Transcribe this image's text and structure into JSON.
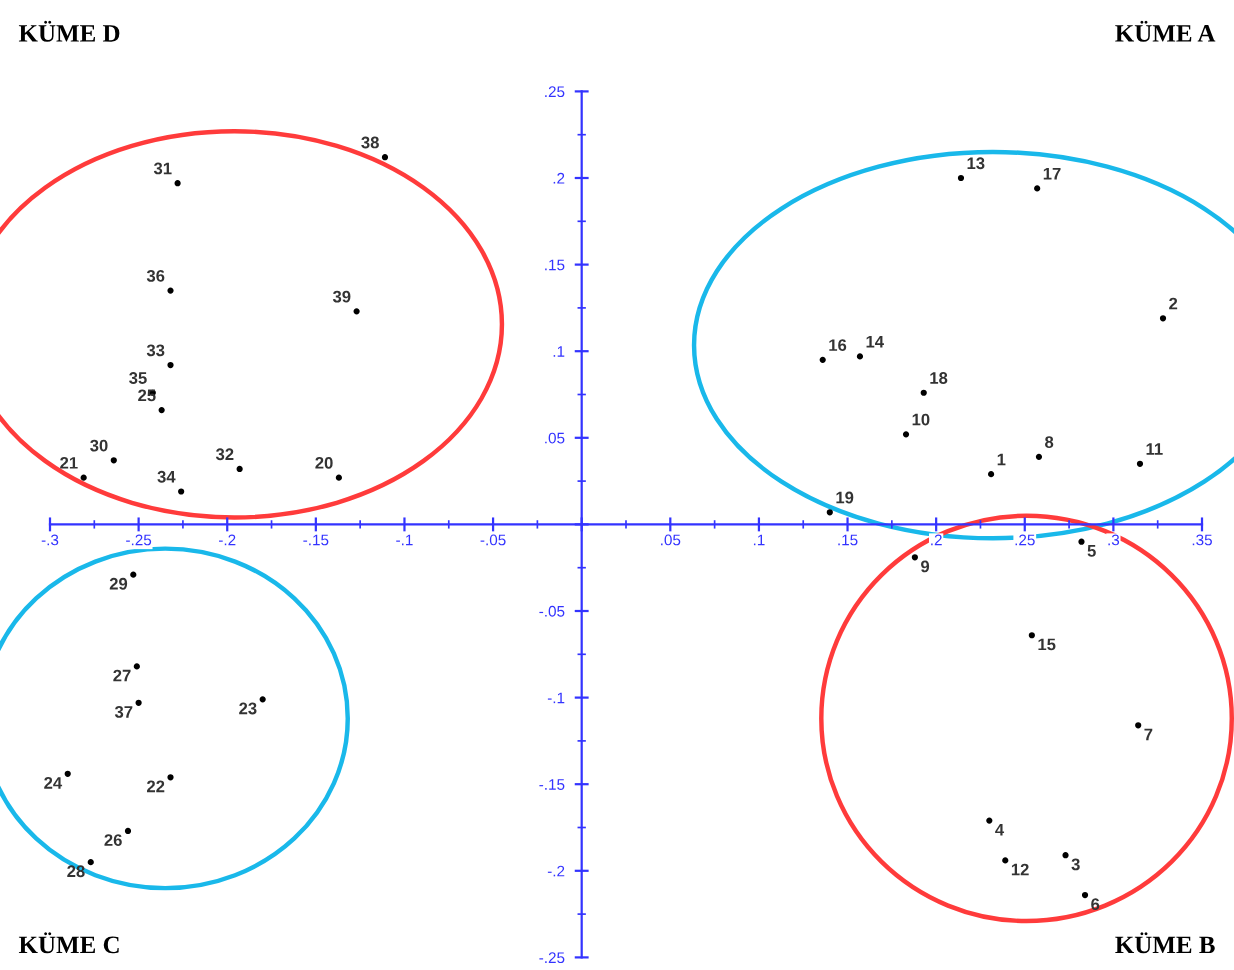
{
  "chart_data": {
    "type": "scatter",
    "marker": "circle",
    "grid": false,
    "xlim": [
      -0.3,
      0.35
    ],
    "ylim": [
      -0.25,
      0.25
    ],
    "xticks": [
      {
        "value": -0.3,
        "label": "-.3"
      },
      {
        "value": -0.25,
        "label": "-.25"
      },
      {
        "value": -0.2,
        "label": "-.2"
      },
      {
        "value": -0.15,
        "label": "-.15"
      },
      {
        "value": -0.1,
        "label": "-.1"
      },
      {
        "value": -0.05,
        "label": "-.05"
      },
      {
        "value": 0,
        "label": null
      },
      {
        "value": 0.05,
        "label": ".05"
      },
      {
        "value": 0.1,
        "label": ".1"
      },
      {
        "value": 0.15,
        "label": ".15"
      },
      {
        "value": 0.2,
        "label": ".2"
      },
      {
        "value": 0.25,
        "label": ".25"
      },
      {
        "value": 0.3,
        "label": ".3"
      },
      {
        "value": 0.35,
        "label": ".35"
      }
    ],
    "yticks": [
      {
        "value": -0.25,
        "label": "-.25"
      },
      {
        "value": -0.2,
        "label": "-.2"
      },
      {
        "value": -0.15,
        "label": "-.15"
      },
      {
        "value": -0.1,
        "label": "-.1"
      },
      {
        "value": -0.05,
        "label": "-.05"
      },
      {
        "value": 0,
        "label": null
      },
      {
        "value": 0.05,
        "label": ".05"
      },
      {
        "value": 0.1,
        "label": ".1"
      },
      {
        "value": 0.15,
        "label": ".15"
      },
      {
        "value": 0.2,
        "label": ".2"
      },
      {
        "value": 0.25,
        "label": ".25"
      }
    ],
    "annotations": [
      "KÜME D",
      "KÜME A",
      "KÜME C",
      "KÜME B",
      {
        "text": "38",
        "x": -0.111,
        "y": 0.212
      },
      {
        "text": "31",
        "x": -0.228,
        "y": 0.197
      },
      {
        "text": "36",
        "x": -0.232,
        "y": 0.135
      },
      {
        "text": "39",
        "x": -0.127,
        "y": 0.123
      },
      {
        "text": "33",
        "x": -0.232,
        "y": 0.092
      },
      {
        "text": "35",
        "x": -0.242,
        "y": 0.076
      },
      {
        "text": "25",
        "x": -0.237,
        "y": 0.066
      },
      {
        "text": "30",
        "x": -0.264,
        "y": 0.037
      },
      {
        "text": "21",
        "x": -0.281,
        "y": 0.027
      },
      {
        "text": "32",
        "x": -0.193,
        "y": 0.032
      },
      {
        "text": "20",
        "x": -0.137,
        "y": 0.027
      },
      {
        "text": "34",
        "x": -0.226,
        "y": 0.019
      },
      {
        "text": "13",
        "x": 0.214,
        "y": 0.2
      },
      {
        "text": "17",
        "x": 0.257,
        "y": 0.194
      },
      {
        "text": "2",
        "x": 0.328,
        "y": 0.119
      },
      {
        "text": "16",
        "x": 0.136,
        "y": 0.095
      },
      {
        "text": "14",
        "x": 0.157,
        "y": 0.097
      },
      {
        "text": "18",
        "x": 0.193,
        "y": 0.076
      },
      {
        "text": "10",
        "x": 0.183,
        "y": 0.052
      },
      {
        "text": "8",
        "x": 0.258,
        "y": 0.039
      },
      {
        "text": "1",
        "x": 0.231,
        "y": 0.029
      },
      {
        "text": "11",
        "x": 0.315,
        "y": 0.035
      },
      {
        "text": "19",
        "x": 0.14,
        "y": 0.007
      },
      {
        "text": "29",
        "x": -0.253,
        "y": -0.029
      },
      {
        "text": "27",
        "x": -0.251,
        "y": -0.082
      },
      {
        "text": "37",
        "x": -0.25,
        "y": -0.103
      },
      {
        "text": "23",
        "x": -0.18,
        "y": -0.101
      },
      {
        "text": "24",
        "x": -0.29,
        "y": -0.144
      },
      {
        "text": "22",
        "x": -0.232,
        "y": -0.146
      },
      {
        "text": "26",
        "x": -0.256,
        "y": -0.177
      },
      {
        "text": "28",
        "x": -0.277,
        "y": -0.195
      },
      {
        "text": "9",
        "x": 0.188,
        "y": -0.019
      },
      {
        "text": "5",
        "x": 0.282,
        "y": -0.01
      },
      {
        "text": "15",
        "x": 0.254,
        "y": -0.064
      },
      {
        "text": "7",
        "x": 0.314,
        "y": -0.116
      },
      {
        "text": "4",
        "x": 0.23,
        "y": -0.171
      },
      {
        "text": "12",
        "x": 0.239,
        "y": -0.194
      },
      {
        "text": "3",
        "x": 0.273,
        "y": -0.191
      },
      {
        "text": "6",
        "x": 0.284,
        "y": -0.214
      }
    ],
    "series": [
      {
        "color": "#000000",
        "x": [
          -0.111,
          -0.228,
          -0.232,
          -0.127,
          -0.232,
          -0.242,
          -0.237,
          -0.264,
          -0.281,
          -0.193,
          -0.137,
          -0.226
        ],
        "values": [
          0.212,
          0.197,
          0.135,
          0.123,
          0.092,
          0.076,
          0.066,
          0.037,
          0.027,
          0.032,
          0.027,
          0.019
        ]
      },
      {
        "color": "#000000",
        "x": [
          0.214,
          0.257,
          0.328,
          0.136,
          0.157,
          0.193,
          0.183,
          0.258,
          0.231,
          0.315,
          0.14
        ],
        "values": [
          0.2,
          0.194,
          0.119,
          0.095,
          0.097,
          0.076,
          0.052,
          0.039,
          0.029,
          0.035,
          0.007
        ]
      },
      {
        "color": "#000000",
        "x": [
          -0.253,
          -0.251,
          -0.25,
          -0.18,
          -0.29,
          -0.232,
          -0.256,
          -0.277
        ],
        "values": [
          -0.029,
          -0.082,
          -0.103,
          -0.101,
          -0.144,
          -0.146,
          -0.177,
          -0.195
        ]
      },
      {
        "color": "#000000",
        "x": [
          0.188,
          0.282,
          0.254,
          0.314,
          0.23,
          0.239,
          0.273,
          0.284
        ],
        "values": [
          -0.019,
          -0.01,
          -0.064,
          -0.116,
          -0.171,
          -0.194,
          -0.191,
          -0.214
        ]
      }
    ]
  }
}
